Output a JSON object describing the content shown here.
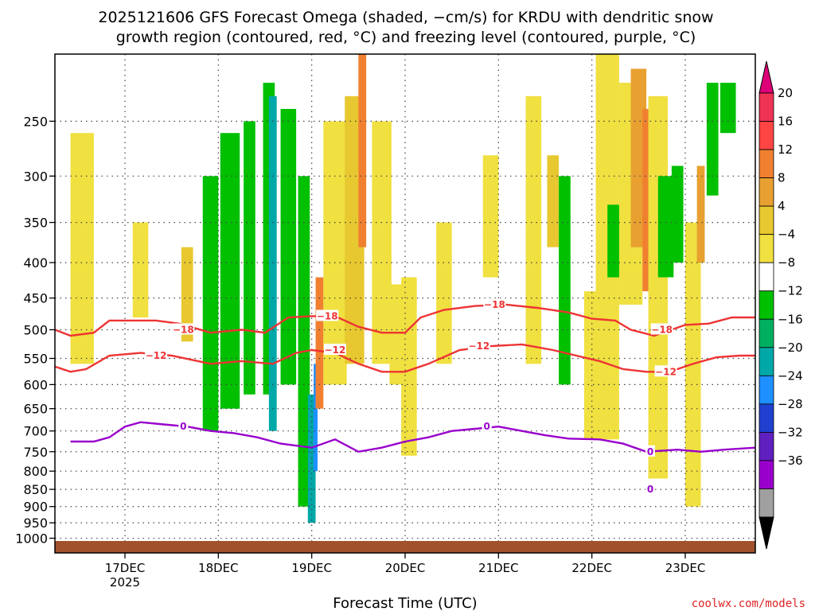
{
  "title": {
    "line1": "2025121606 GFS Forecast Omega (shaded, −cm/s) for KRDU with dendritic snow",
    "line2": "growth region (contoured, red, °C) and freezing level (contoured, purple, °C)"
  },
  "credit": "coolwx.com/models",
  "colors": {
    "red_contour": "#ee3333",
    "purple_contour": "#9900cc",
    "ground": "#a0522d",
    "credit": "#dd2222"
  },
  "chart_data": {
    "type": "heatmap",
    "xlabel": "Forecast Time (UTC)",
    "xlim_hours": [
      0,
      180
    ],
    "x_ticks": [
      {
        "label": "17DEC",
        "sublabel": "2025",
        "hour": 18
      },
      {
        "label": "18DEC",
        "sublabel": "",
        "hour": 42
      },
      {
        "label": "19DEC",
        "sublabel": "",
        "hour": 66
      },
      {
        "label": "20DEC",
        "sublabel": "",
        "hour": 90
      },
      {
        "label": "21DEC",
        "sublabel": "",
        "hour": 114
      },
      {
        "label": "22DEC",
        "sublabel": "",
        "hour": 138
      },
      {
        "label": "23DEC",
        "sublabel": "",
        "hour": 162
      }
    ],
    "y_axis": {
      "scale": "log-pressure",
      "units": "hPa",
      "top": 200,
      "bottom": 1050
    },
    "y_ticks": [
      250,
      300,
      350,
      400,
      450,
      500,
      550,
      600,
      650,
      700,
      750,
      800,
      850,
      900,
      950,
      1000
    ],
    "colorbar": {
      "labels": [
        "20",
        "16",
        "12",
        "8",
        "4",
        "−4",
        "−8",
        "−12",
        "−16",
        "−20",
        "−24",
        "−28",
        "−32",
        "−36"
      ],
      "colors": [
        "#ee3355",
        "#ff4444",
        "#f08030",
        "#e8a030",
        "#e8c830",
        "#f0e040",
        "#ffffff",
        "#00c000",
        "#00b060",
        "#00a8a8",
        "#1e90ff",
        "#2040d0",
        "#6020c0",
        "#9900cc",
        "#a0a0a0"
      ],
      "top_color": "#dd0077",
      "bottom_color": "#000000"
    },
    "contours": [
      {
        "name": "dgz-top",
        "label": "−18",
        "color": "red",
        "points": [
          [
            0,
            500
          ],
          [
            4,
            510
          ],
          [
            10,
            505
          ],
          [
            14,
            485
          ],
          [
            26,
            485
          ],
          [
            32,
            490
          ],
          [
            40,
            505
          ],
          [
            48,
            500
          ],
          [
            54,
            505
          ],
          [
            60,
            480
          ],
          [
            66,
            478
          ],
          [
            72,
            478
          ],
          [
            78,
            495
          ],
          [
            84,
            505
          ],
          [
            90,
            505
          ],
          [
            94,
            480
          ],
          [
            100,
            468
          ],
          [
            108,
            462
          ],
          [
            116,
            460
          ],
          [
            124,
            465
          ],
          [
            132,
            472
          ],
          [
            138,
            482
          ],
          [
            144,
            485
          ],
          [
            148,
            500
          ],
          [
            154,
            510
          ],
          [
            162,
            492
          ],
          [
            168,
            490
          ],
          [
            174,
            480
          ],
          [
            180,
            480
          ]
        ],
        "labels": [
          [
            33,
            500
          ],
          [
            70,
            478
          ],
          [
            113,
            460
          ],
          [
            156,
            500
          ]
        ]
      },
      {
        "name": "dgz-bottom",
        "label": "−12",
        "color": "red",
        "points": [
          [
            0,
            565
          ],
          [
            4,
            575
          ],
          [
            8,
            570
          ],
          [
            14,
            545
          ],
          [
            22,
            540
          ],
          [
            30,
            545
          ],
          [
            40,
            560
          ],
          [
            48,
            555
          ],
          [
            56,
            560
          ],
          [
            62,
            540
          ],
          [
            66,
            535
          ],
          [
            72,
            540
          ],
          [
            78,
            560
          ],
          [
            84,
            575
          ],
          [
            90,
            575
          ],
          [
            96,
            560
          ],
          [
            104,
            535
          ],
          [
            112,
            528
          ],
          [
            120,
            525
          ],
          [
            128,
            535
          ],
          [
            134,
            545
          ],
          [
            140,
            555
          ],
          [
            146,
            570
          ],
          [
            152,
            575
          ],
          [
            158,
            575
          ],
          [
            164,
            560
          ],
          [
            170,
            548
          ],
          [
            176,
            545
          ],
          [
            180,
            545
          ]
        ],
        "labels": [
          [
            26,
            545
          ],
          [
            72,
            535
          ],
          [
            109,
            528
          ],
          [
            157,
            575
          ]
        ]
      },
      {
        "name": "freezing-level",
        "label": "0",
        "color": "purple",
        "points": [
          [
            4,
            725
          ],
          [
            10,
            725
          ],
          [
            14,
            715
          ],
          [
            18,
            690
          ],
          [
            22,
            680
          ],
          [
            28,
            685
          ],
          [
            34,
            690
          ],
          [
            40,
            700
          ],
          [
            46,
            705
          ],
          [
            52,
            715
          ],
          [
            58,
            730
          ],
          [
            66,
            740
          ],
          [
            72,
            720
          ],
          [
            78,
            750
          ],
          [
            84,
            740
          ],
          [
            90,
            725
          ],
          [
            96,
            715
          ],
          [
            102,
            700
          ],
          [
            108,
            695
          ],
          [
            114,
            690
          ],
          [
            120,
            700
          ],
          [
            126,
            710
          ],
          [
            132,
            718
          ],
          [
            140,
            720
          ],
          [
            146,
            730
          ],
          [
            152,
            750
          ],
          [
            160,
            745
          ],
          [
            166,
            750
          ],
          [
            172,
            745
          ],
          [
            180,
            740
          ]
        ],
        "labels": [
          [
            33,
            690
          ],
          [
            111,
            690
          ],
          [
            153,
            750
          ],
          [
            153,
            850
          ]
        ]
      }
    ]
  }
}
